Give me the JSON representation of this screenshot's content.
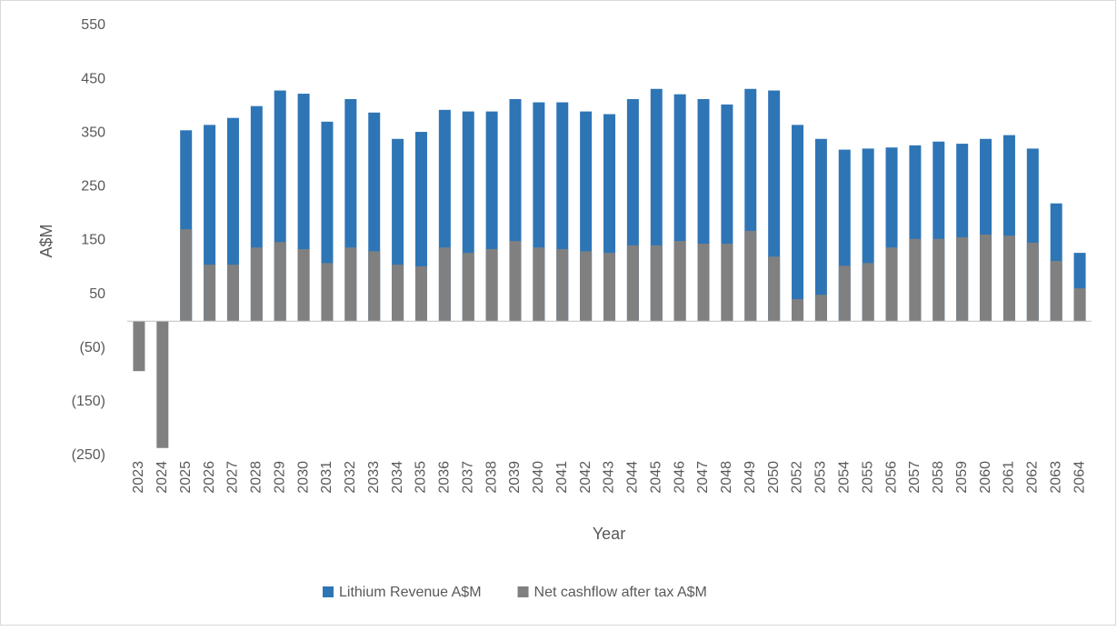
{
  "chart_data": {
    "type": "bar",
    "xlabel": "Year",
    "ylabel": "A$M",
    "categories": [
      "2023",
      "2024",
      "2025",
      "2026",
      "2027",
      "2028",
      "2029",
      "2030",
      "2031",
      "2032",
      "2033",
      "2034",
      "2035",
      "2036",
      "2037",
      "2038",
      "2039",
      "2040",
      "2041",
      "2042",
      "2043",
      "2044",
      "2045",
      "2046",
      "2047",
      "2048",
      "2049",
      "2050",
      "2052",
      "2053",
      "2054",
      "2055",
      "2056",
      "2057",
      "2058",
      "2059",
      "2060",
      "2061",
      "2062",
      "2063",
      "2064"
    ],
    "series": [
      {
        "name": "Lithium Revenue A$M",
        "color": "#2e75b6",
        "values": [
          null,
          null,
          355,
          365,
          378,
          400,
          429,
          423,
          371,
          413,
          388,
          339,
          352,
          393,
          390,
          390,
          413,
          407,
          407,
          390,
          385,
          413,
          432,
          422,
          413,
          403,
          432,
          429,
          365,
          339,
          319,
          321,
          323,
          327,
          334,
          330,
          339,
          346,
          321,
          219,
          127
        ]
      },
      {
        "name": "Net cashflow after tax A$M",
        "color": "#808080",
        "values": [
          -93,
          -236,
          171,
          105,
          105,
          137,
          147,
          134,
          108,
          137,
          130,
          105,
          102,
          137,
          127,
          134,
          149,
          137,
          134,
          130,
          127,
          141,
          141,
          149,
          144,
          144,
          168,
          120,
          41,
          49,
          103,
          108,
          137,
          153,
          153,
          156,
          161,
          159,
          146,
          112,
          61
        ]
      }
    ],
    "ylim": [
      -250,
      550
    ],
    "yticks": [
      550,
      450,
      350,
      250,
      150,
      50,
      {
        "value": -50,
        "label": "(50)"
      },
      {
        "value": -150,
        "label": "(150)"
      },
      {
        "value": -250,
        "label": "(250)"
      }
    ],
    "grid": false,
    "legend": "bottom"
  }
}
